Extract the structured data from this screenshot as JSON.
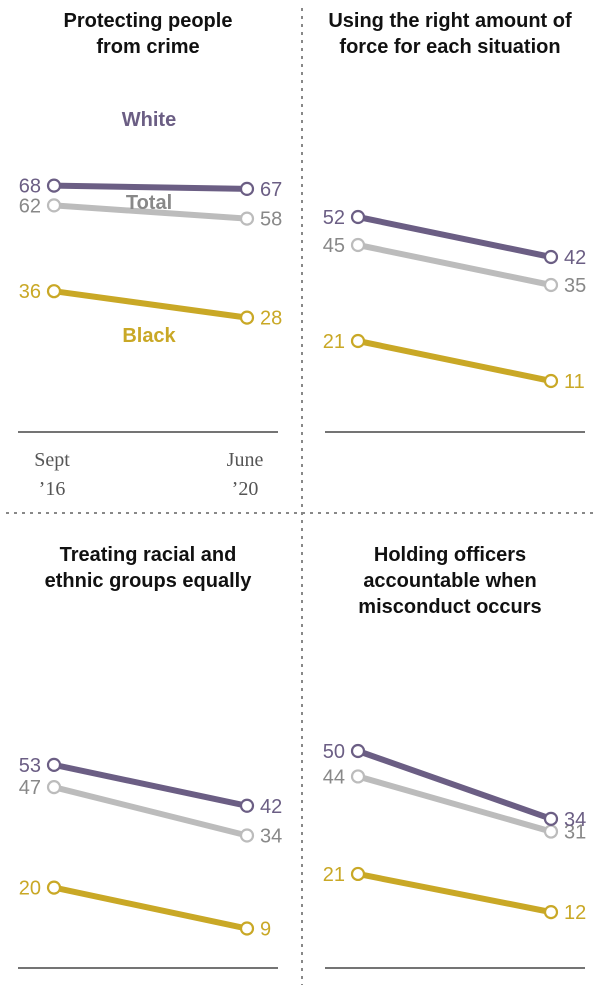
{
  "colors": {
    "white": "#6b5e84",
    "total": "#bcbcbc",
    "total_text": "#888888",
    "black": "#c9a826"
  },
  "x_labels": [
    [
      "Sept",
      "’16"
    ],
    [
      "June",
      "’20"
    ]
  ],
  "chart_data": [
    {
      "type": "line",
      "title": [
        "Protecting people",
        "from crime"
      ],
      "categories": [
        "Sept ’16",
        "June ’20"
      ],
      "series": [
        {
          "name": "White",
          "values": [
            68,
            67
          ]
        },
        {
          "name": "Total",
          "values": [
            62,
            58
          ]
        },
        {
          "name": "Black",
          "values": [
            36,
            28
          ]
        }
      ]
    },
    {
      "type": "line",
      "title": [
        "Using the right amount of",
        "force for each situation"
      ],
      "categories": [
        "Sept ’16",
        "June ’20"
      ],
      "series": [
        {
          "name": "White",
          "values": [
            52,
            42
          ]
        },
        {
          "name": "Total",
          "values": [
            45,
            35
          ]
        },
        {
          "name": "Black",
          "values": [
            21,
            11
          ]
        }
      ]
    },
    {
      "type": "line",
      "title": [
        "Treating racial and",
        "ethnic groups equally"
      ],
      "categories": [
        "Sept ’16",
        "June ’20"
      ],
      "series": [
        {
          "name": "White",
          "values": [
            53,
            42
          ]
        },
        {
          "name": "Total",
          "values": [
            47,
            34
          ]
        },
        {
          "name": "Black",
          "values": [
            20,
            9
          ]
        }
      ]
    },
    {
      "type": "line",
      "title": [
        "Holding officers",
        "accountable when",
        "misconduct occurs"
      ],
      "categories": [
        "Sept ’16",
        "June ’20"
      ],
      "series": [
        {
          "name": "White",
          "values": [
            50,
            34
          ]
        },
        {
          "name": "Total",
          "values": [
            44,
            31
          ]
        },
        {
          "name": "Black",
          "values": [
            21,
            12
          ]
        }
      ]
    }
  ]
}
